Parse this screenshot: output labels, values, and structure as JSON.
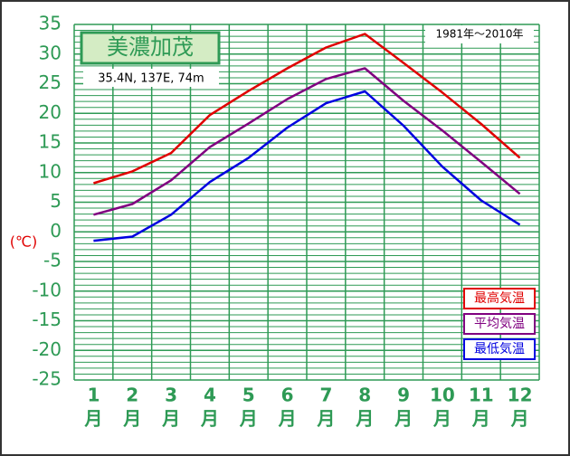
{
  "chart_data": {
    "type": "line",
    "title": "美濃加茂",
    "subtitle": "35.4N, 137E, 74m",
    "period": "1981年〜2010年",
    "y_axis_label": "(℃)",
    "categories": [
      "1",
      "2",
      "3",
      "4",
      "5",
      "6",
      "7",
      "8",
      "9",
      "10",
      "11",
      "12"
    ],
    "month_unit": "月",
    "series": [
      {
        "name": "最高気温",
        "color": "#e00000",
        "values": [
          8.2,
          10.2,
          13.3,
          19.7,
          23.8,
          27.6,
          31.1,
          33.4,
          28.5,
          23.5,
          18.2,
          12.5
        ]
      },
      {
        "name": "平均気温",
        "color": "#800080",
        "values": [
          2.9,
          4.7,
          8.7,
          14.3,
          18.3,
          22.4,
          25.8,
          27.6,
          22.1,
          17.1,
          11.8,
          6.4
        ]
      },
      {
        "name": "最低気温",
        "color": "#0000e0",
        "values": [
          -1.5,
          -0.8,
          2.9,
          8.4,
          12.5,
          17.6,
          21.7,
          23.7,
          17.9,
          11.0,
          5.3,
          1.2
        ]
      }
    ],
    "ylim": [
      -25,
      35
    ],
    "yticks": [
      -25,
      -20,
      -15,
      -10,
      -5,
      0,
      5,
      10,
      15,
      20,
      25,
      30,
      35
    ],
    "grid": true
  }
}
